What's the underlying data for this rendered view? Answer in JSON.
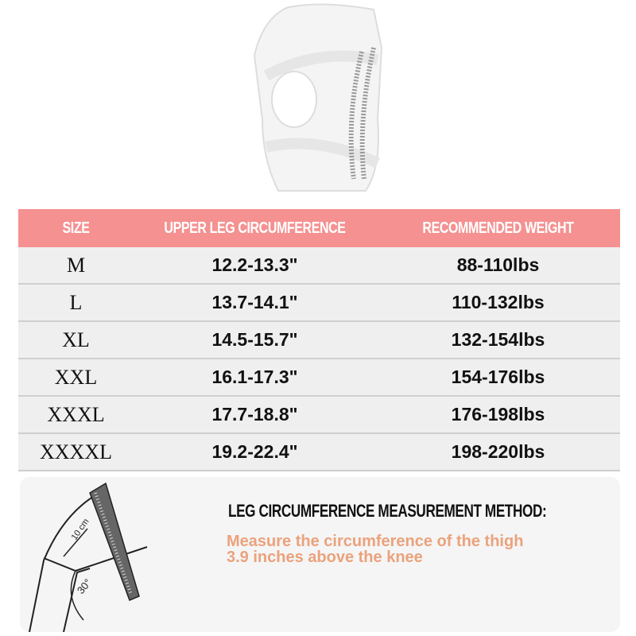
{
  "table": {
    "headers": [
      "SIZE",
      "UPPER LEG CIRCUMFERENCE",
      "RECOMMENDED WEIGHT"
    ],
    "rows": [
      {
        "size": "M",
        "circumference": "12.2-13.3\"",
        "weight": "88-110lbs"
      },
      {
        "size": "L",
        "circumference": "13.7-14.1\"",
        "weight": "110-132lbs"
      },
      {
        "size": "XL",
        "circumference": "14.5-15.7\"",
        "weight": "132-154lbs"
      },
      {
        "size": "XXL",
        "circumference": "16.1-17.3\"",
        "weight": "154-176lbs"
      },
      {
        "size": "XXXL",
        "circumference": "17.7-18.8\"",
        "weight": "176-198lbs"
      },
      {
        "size": "XXXXL",
        "circumference": "19.2-22.4\"",
        "weight": "198-220lbs"
      }
    ]
  },
  "method": {
    "title": "LEG CIRCUMFERENCE MEASUREMENT METHOD:",
    "description_line1": "Measure the circumference of the thigh",
    "description_line2": "3.9 inches above the knee",
    "diagram_distance": "10 cm",
    "diagram_angle": "30°"
  },
  "colors": {
    "header": "#f59191",
    "row": "#efefef",
    "accent_text": "#eba27c"
  }
}
